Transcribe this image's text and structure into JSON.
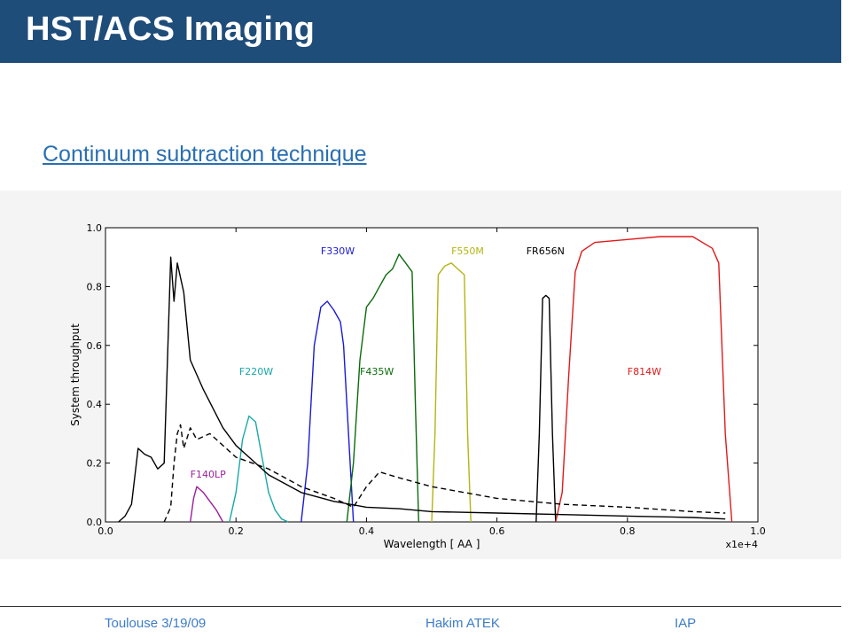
{
  "slide": {
    "title": "HST/ACS Imaging",
    "subtitle": "Continuum subtraction technique"
  },
  "footer": {
    "left": "Toulouse 3/19/09",
    "center": "Hakim ATEK",
    "right": "IAP"
  },
  "colors": {
    "title_bar": "#1f4d7a",
    "subtitle": "#2a6fb2",
    "footer_text": "#3d7cc9"
  },
  "chart_data": {
    "type": "line",
    "xlabel": "Wavelength [ AA ]",
    "ylabel": "System throughput",
    "x_offset_label": "x1e+4",
    "xlim": [
      0.0,
      1.0
    ],
    "ylim": [
      0.0,
      1.0
    ],
    "xticks": [
      "0.0",
      "0.2",
      "0.4",
      "0.6",
      "0.8",
      "1.0"
    ],
    "yticks": [
      "0.0",
      "0.2",
      "0.4",
      "0.6",
      "0.8",
      "1.0"
    ],
    "series": [
      {
        "name": "F140LP",
        "color": "#9b1f9b",
        "x": [
          0.13,
          0.135,
          0.14,
          0.145,
          0.15,
          0.16,
          0.17,
          0.175,
          0.18
        ],
        "y": [
          0.0,
          0.08,
          0.12,
          0.11,
          0.1,
          0.07,
          0.04,
          0.02,
          0.0
        ]
      },
      {
        "name": "F220W",
        "color": "#19a8a8",
        "x": [
          0.19,
          0.2,
          0.21,
          0.22,
          0.23,
          0.24,
          0.25,
          0.26,
          0.27,
          0.28
        ],
        "y": [
          0.0,
          0.1,
          0.28,
          0.36,
          0.34,
          0.22,
          0.1,
          0.04,
          0.01,
          0.0
        ]
      },
      {
        "name": "F330W",
        "color": "#1a1ad6",
        "x": [
          0.3,
          0.31,
          0.315,
          0.32,
          0.33,
          0.34,
          0.35,
          0.36,
          0.365,
          0.37,
          0.38
        ],
        "y": [
          0.0,
          0.2,
          0.4,
          0.6,
          0.73,
          0.75,
          0.72,
          0.68,
          0.6,
          0.4,
          0.0
        ]
      },
      {
        "name": "F435W",
        "color": "#0b6b0b",
        "x": [
          0.37,
          0.38,
          0.39,
          0.4,
          0.41,
          0.42,
          0.43,
          0.44,
          0.45,
          0.46,
          0.47,
          0.475,
          0.48
        ],
        "y": [
          0.0,
          0.2,
          0.55,
          0.73,
          0.76,
          0.8,
          0.84,
          0.86,
          0.91,
          0.88,
          0.85,
          0.4,
          0.0
        ]
      },
      {
        "name": "F550M",
        "color": "#b4b414",
        "x": [
          0.5,
          0.505,
          0.51,
          0.52,
          0.53,
          0.54,
          0.55,
          0.555,
          0.56
        ],
        "y": [
          0.0,
          0.3,
          0.84,
          0.87,
          0.88,
          0.86,
          0.84,
          0.3,
          0.0
        ]
      },
      {
        "name": "FR656N",
        "color": "#000000",
        "x": [
          0.66,
          0.665,
          0.67,
          0.675,
          0.68,
          0.685,
          0.69
        ],
        "y": [
          0.0,
          0.3,
          0.76,
          0.77,
          0.76,
          0.3,
          0.0
        ]
      },
      {
        "name": "F814W",
        "color": "#e01a1a",
        "x": [
          0.69,
          0.7,
          0.71,
          0.72,
          0.73,
          0.75,
          0.8,
          0.85,
          0.9,
          0.93,
          0.94,
          0.95,
          0.96
        ],
        "y": [
          0.0,
          0.1,
          0.5,
          0.85,
          0.92,
          0.95,
          0.96,
          0.97,
          0.97,
          0.93,
          0.88,
          0.3,
          0.0
        ]
      },
      {
        "name": "solid spectrum",
        "color": "#000000",
        "x": [
          0.02,
          0.03,
          0.04,
          0.05,
          0.06,
          0.07,
          0.08,
          0.09,
          0.1,
          0.105,
          0.11,
          0.12,
          0.13,
          0.15,
          0.18,
          0.2,
          0.25,
          0.3,
          0.35,
          0.4,
          0.45,
          0.5,
          0.6,
          0.7,
          0.8,
          0.9,
          0.95
        ],
        "y": [
          0.0,
          0.02,
          0.06,
          0.25,
          0.23,
          0.22,
          0.18,
          0.2,
          0.9,
          0.75,
          0.88,
          0.78,
          0.55,
          0.45,
          0.32,
          0.26,
          0.16,
          0.1,
          0.07,
          0.05,
          0.045,
          0.035,
          0.03,
          0.025,
          0.02,
          0.015,
          0.01
        ]
      },
      {
        "name": "dashed spectrum",
        "color": "#000000",
        "dashed": true,
        "x": [
          0.09,
          0.1,
          0.105,
          0.11,
          0.115,
          0.12,
          0.13,
          0.14,
          0.16,
          0.2,
          0.25,
          0.3,
          0.35,
          0.38,
          0.4,
          0.42,
          0.45,
          0.5,
          0.55,
          0.6,
          0.7,
          0.8,
          0.9,
          0.95
        ],
        "y": [
          0.0,
          0.05,
          0.2,
          0.3,
          0.33,
          0.25,
          0.32,
          0.28,
          0.3,
          0.22,
          0.18,
          0.12,
          0.08,
          0.05,
          0.12,
          0.17,
          0.15,
          0.12,
          0.1,
          0.08,
          0.06,
          0.05,
          0.035,
          0.03
        ]
      }
    ],
    "band_labels": [
      {
        "text": "F330W",
        "color": "#1a1ad6",
        "x": 0.33,
        "y": 0.91
      },
      {
        "text": "F550M",
        "color": "#b4b414",
        "x": 0.53,
        "y": 0.91
      },
      {
        "text": "FR656N",
        "color": "#000000",
        "x": 0.645,
        "y": 0.91
      },
      {
        "text": "F220W",
        "color": "#19a8a8",
        "x": 0.205,
        "y": 0.5
      },
      {
        "text": "F435W",
        "color": "#0b6b0b",
        "x": 0.39,
        "y": 0.5
      },
      {
        "text": "F814W",
        "color": "#e01a1a",
        "x": 0.8,
        "y": 0.5
      },
      {
        "text": "F140LP",
        "color": "#9b1f9b",
        "x": 0.13,
        "y": 0.15
      }
    ]
  }
}
